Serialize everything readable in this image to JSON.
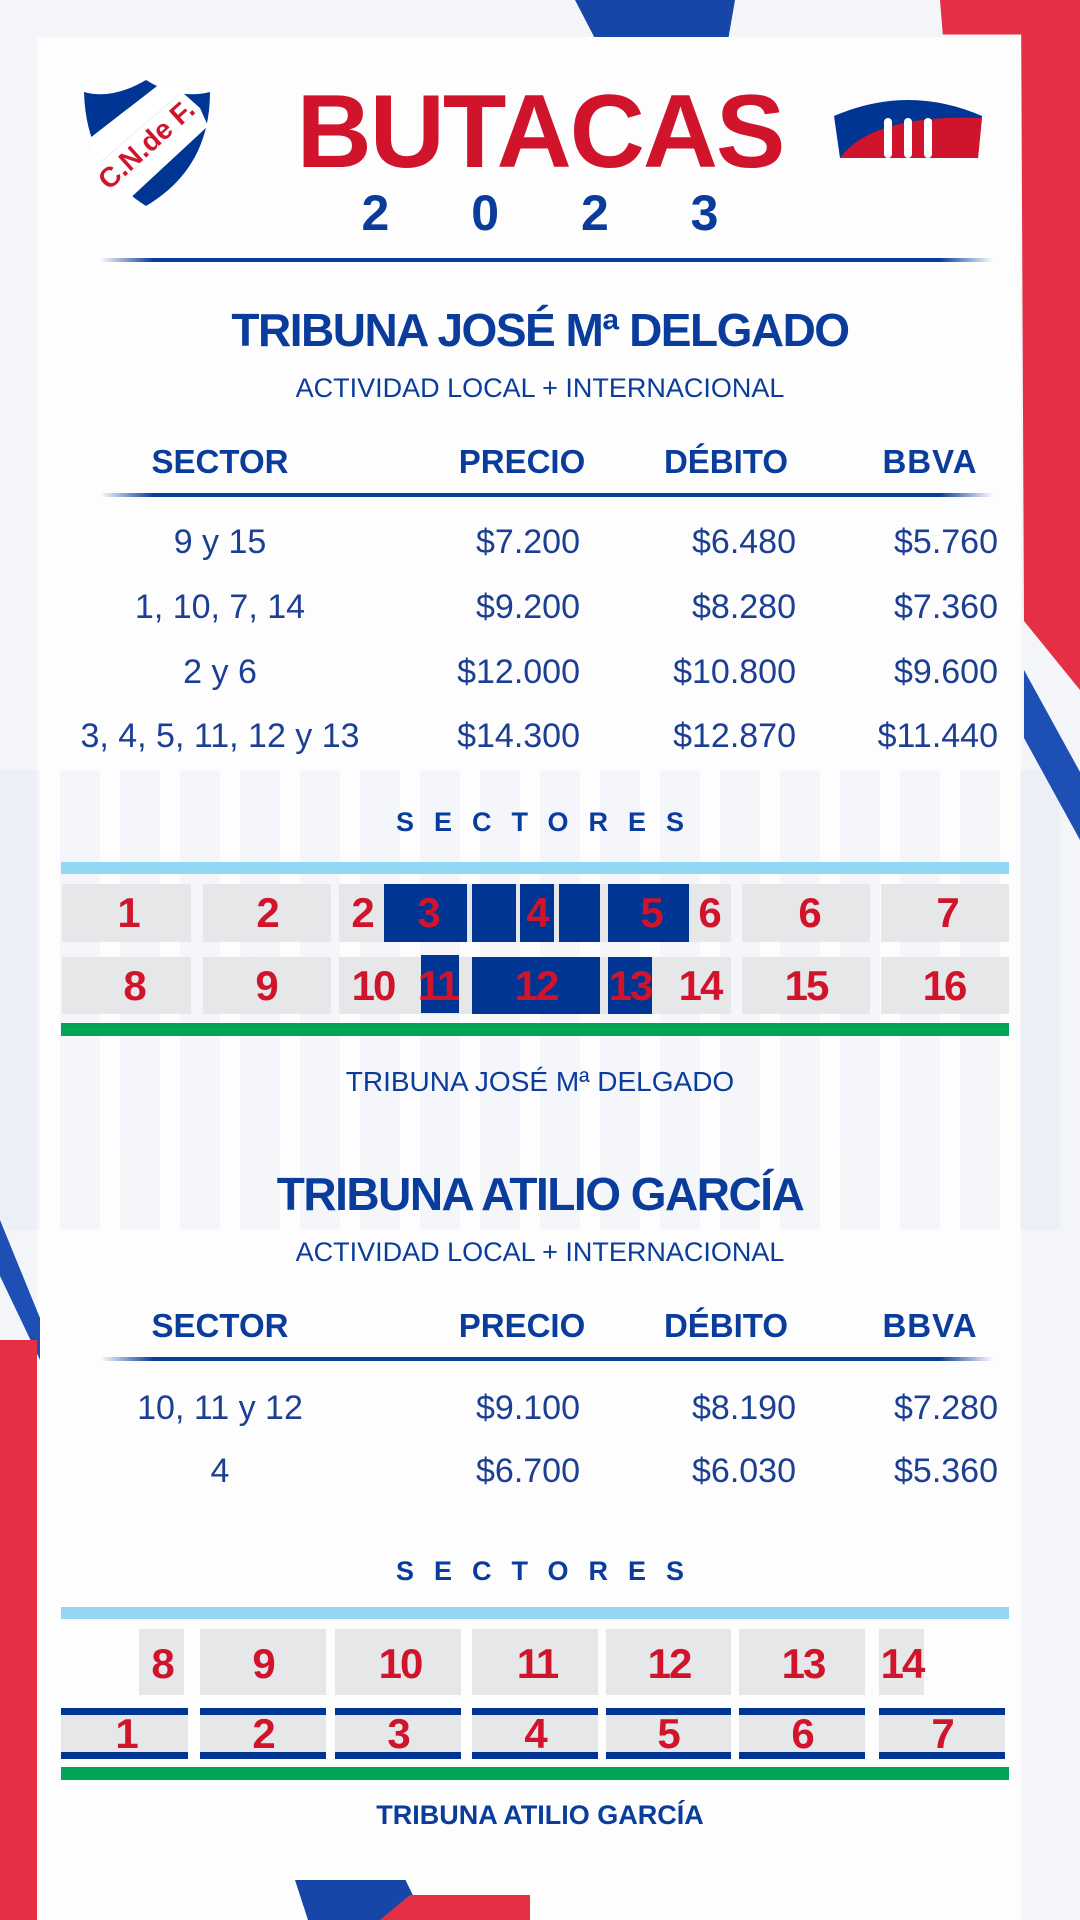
{
  "header": {
    "title": "BUTACAS",
    "year": "2 0 2 3",
    "club_logo_text": "C.N.de F."
  },
  "colors": {
    "blue": "#0a3c9c",
    "red": "#cf142b",
    "light_blue": "#93d7f5",
    "green": "#00a558",
    "seat_gray": "#e6e7e9"
  },
  "columns": {
    "sector": "SECTOR",
    "precio": "PRECIO",
    "debito": "DÉBITO",
    "bbva": "BBVA"
  },
  "delgado": {
    "title": "TRIBUNA JOSÉ Mª DELGADO",
    "subtitle": "ACTIVIDAD LOCAL + INTERNACIONAL",
    "rows": [
      {
        "sector": "9 y 15",
        "precio": "$7.200",
        "debito": "$6.480",
        "bbva": "$5.760"
      },
      {
        "sector": "1, 10, 7, 14",
        "precio": "$9.200",
        "debito": "$8.280",
        "bbva": "$7.360"
      },
      {
        "sector": "2 y 6",
        "precio": "$12.000",
        "debito": "$10.800",
        "bbva": "$9.600"
      },
      {
        "sector": "3, 4, 5, 11, 12 y 13",
        "precio": "$14.300",
        "debito": "$12.870",
        "bbva": "$11.440"
      }
    ],
    "map_title": "SECTORES",
    "map_row1": [
      "1",
      "2",
      "2",
      "3",
      "4",
      "5",
      "6",
      "6",
      "7"
    ],
    "map_row2": [
      "8",
      "9",
      "10",
      "11",
      "12",
      "13",
      "14",
      "15",
      "16"
    ],
    "caption": "TRIBUNA JOSÉ Mª DELGADO"
  },
  "garcia": {
    "title": "TRIBUNA ATILIO GARCÍA",
    "subtitle": "ACTIVIDAD LOCAL + INTERNACIONAL",
    "rows": [
      {
        "sector": "10, 11 y 12",
        "precio": "$9.100",
        "debito": "$8.190",
        "bbva": "$7.280"
      },
      {
        "sector": "4",
        "precio": "$6.700",
        "debito": "$6.030",
        "bbva": "$5.360"
      }
    ],
    "map_title": "SECTORES",
    "map_row1": [
      "8",
      "9",
      "10",
      "11",
      "12",
      "13",
      "14"
    ],
    "map_row2": [
      "1",
      "2",
      "3",
      "4",
      "5",
      "6",
      "7"
    ],
    "caption": "TRIBUNA ATILIO GARCÍA"
  }
}
